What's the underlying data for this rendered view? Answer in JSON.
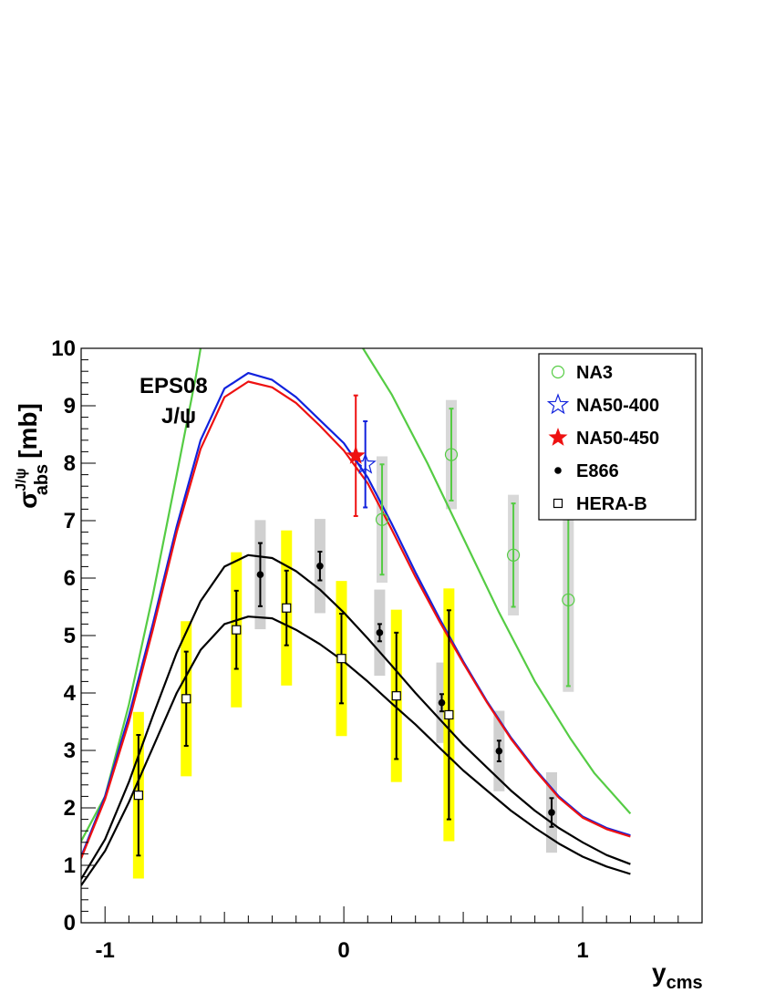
{
  "chart_data": {
    "type": "scatter",
    "title": "",
    "xlabel": "y",
    "xlabel_sub": "cms",
    "ylabel": "σ",
    "ylabel_sup": "J/ψ",
    "ylabel_sub": "abs",
    "ylabel_unit": "[mb]",
    "xlim": [
      -1.1,
      1.5
    ],
    "ylim": [
      0,
      10
    ],
    "x_ticks": [
      -1,
      0,
      1
    ],
    "x_tick_labels": [
      "-1",
      "0",
      "1"
    ],
    "y_ticks": [
      0,
      1,
      2,
      3,
      4,
      5,
      6,
      7,
      8,
      9,
      10
    ],
    "y_tick_labels": [
      "0",
      "1",
      "2",
      "3",
      "4",
      "5",
      "6",
      "7",
      "8",
      "9",
      "10"
    ],
    "annotation": [
      "EPS08",
      "J/ψ"
    ],
    "legend": [
      {
        "label": "NA3",
        "marker": "open-circle",
        "color": "#55cc44"
      },
      {
        "label": "NA50-400",
        "marker": "open-star",
        "color": "#1122dd"
      },
      {
        "label": "NA50-450",
        "marker": "filled-star",
        "color": "#ee1111"
      },
      {
        "label": "E866",
        "marker": "filled-circle",
        "color": "#000000"
      },
      {
        "label": "HERA-B",
        "marker": "open-square",
        "color": "#000000"
      }
    ],
    "series": [
      {
        "name": "NA3",
        "marker": "open-circle",
        "color": "#55cc44",
        "syst_color": "#d8d8d8",
        "points": [
          {
            "x": 0.16,
            "y": 7.02,
            "err": 0.96,
            "syst": 1.1
          },
          {
            "x": 0.45,
            "y": 8.15,
            "err": 0.8,
            "syst": 0.95
          },
          {
            "x": 0.71,
            "y": 6.4,
            "err": 0.9,
            "syst": 1.05
          },
          {
            "x": 0.94,
            "y": 5.62,
            "err": 1.5,
            "syst": 1.6
          }
        ]
      },
      {
        "name": "NA50-400",
        "marker": "open-star",
        "color": "#1122dd",
        "points": [
          {
            "x": 0.09,
            "y": 7.98,
            "err": 0.75
          }
        ]
      },
      {
        "name": "NA50-450",
        "marker": "filled-star",
        "color": "#ee1111",
        "points": [
          {
            "x": 0.05,
            "y": 8.13,
            "err": 1.05
          }
        ]
      },
      {
        "name": "E866",
        "marker": "filled-circle",
        "color": "#000000",
        "syst_color": "#d0d0d0",
        "points": [
          {
            "x": -0.35,
            "y": 6.06,
            "err": 0.55,
            "syst": 0.95
          },
          {
            "x": -0.1,
            "y": 6.21,
            "err": 0.25,
            "syst": 0.82
          },
          {
            "x": 0.15,
            "y": 5.05,
            "err": 0.15,
            "syst": 0.75
          },
          {
            "x": 0.41,
            "y": 3.83,
            "err": 0.15,
            "syst": 0.7
          },
          {
            "x": 0.65,
            "y": 2.99,
            "err": 0.18,
            "syst": 0.7
          },
          {
            "x": 0.87,
            "y": 1.92,
            "err": 0.25,
            "syst": 0.7
          }
        ]
      },
      {
        "name": "HERA-B",
        "marker": "open-square",
        "color": "#000000",
        "syst_color": "#ffff00",
        "points": [
          {
            "x": -0.86,
            "y": 2.22,
            "err": 1.05,
            "syst": 1.45
          },
          {
            "x": -0.66,
            "y": 3.9,
            "err": 0.82,
            "syst": 1.35
          },
          {
            "x": -0.45,
            "y": 5.1,
            "err": 0.68,
            "syst": 1.35
          },
          {
            "x": -0.24,
            "y": 5.48,
            "err": 0.65,
            "syst": 1.35
          },
          {
            "x": -0.01,
            "y": 4.6,
            "err": 0.78,
            "syst": 1.35
          },
          {
            "x": 0.22,
            "y": 3.95,
            "err": 1.1,
            "syst": 1.5
          },
          {
            "x": 0.44,
            "y": 3.62,
            "err": 1.82,
            "syst": 2.2
          }
        ]
      }
    ],
    "curves": [
      {
        "name": "green",
        "color": "#55cc44",
        "points": [
          [
            -1.1,
            1.42
          ],
          [
            -1.0,
            2.2
          ],
          [
            -0.9,
            3.8
          ],
          [
            -0.8,
            5.7
          ],
          [
            -0.7,
            7.8
          ],
          [
            -0.62,
            9.5
          ],
          [
            -0.6,
            10.0
          ]
        ]
      },
      {
        "name": "green-right",
        "color": "#55cc44",
        "points": [
          [
            0.08,
            10.0
          ],
          [
            0.2,
            9.2
          ],
          [
            0.35,
            8.0
          ],
          [
            0.5,
            6.7
          ],
          [
            0.65,
            5.4
          ],
          [
            0.8,
            4.2
          ],
          [
            0.95,
            3.2
          ],
          [
            1.05,
            2.6
          ],
          [
            1.2,
            1.9
          ]
        ]
      },
      {
        "name": "blue",
        "color": "#1122dd",
        "points": [
          [
            -1.1,
            1.15
          ],
          [
            -1.0,
            2.2
          ],
          [
            -0.9,
            3.6
          ],
          [
            -0.8,
            5.2
          ],
          [
            -0.7,
            6.9
          ],
          [
            -0.6,
            8.4
          ],
          [
            -0.5,
            9.3
          ],
          [
            -0.4,
            9.57
          ],
          [
            -0.3,
            9.45
          ],
          [
            -0.2,
            9.15
          ],
          [
            -0.1,
            8.75
          ],
          [
            0.0,
            8.35
          ],
          [
            0.1,
            7.75
          ],
          [
            0.2,
            6.95
          ],
          [
            0.3,
            6.1
          ],
          [
            0.4,
            5.3
          ],
          [
            0.5,
            4.55
          ],
          [
            0.6,
            3.85
          ],
          [
            0.7,
            3.22
          ],
          [
            0.8,
            2.68
          ],
          [
            0.9,
            2.2
          ],
          [
            1.0,
            1.85
          ],
          [
            1.1,
            1.65
          ],
          [
            1.2,
            1.52
          ]
        ]
      },
      {
        "name": "red",
        "color": "#ee1111",
        "points": [
          [
            -1.1,
            1.12
          ],
          [
            -1.0,
            2.15
          ],
          [
            -0.9,
            3.5
          ],
          [
            -0.8,
            5.1
          ],
          [
            -0.7,
            6.8
          ],
          [
            -0.6,
            8.25
          ],
          [
            -0.5,
            9.15
          ],
          [
            -0.4,
            9.42
          ],
          [
            -0.3,
            9.32
          ],
          [
            -0.2,
            9.05
          ],
          [
            -0.1,
            8.65
          ],
          [
            0.0,
            8.22
          ],
          [
            0.1,
            7.65
          ],
          [
            0.2,
            6.85
          ],
          [
            0.3,
            6.02
          ],
          [
            0.4,
            5.25
          ],
          [
            0.5,
            4.52
          ],
          [
            0.6,
            3.83
          ],
          [
            0.7,
            3.2
          ],
          [
            0.8,
            2.66
          ],
          [
            0.9,
            2.18
          ],
          [
            1.0,
            1.83
          ],
          [
            1.1,
            1.63
          ],
          [
            1.2,
            1.5
          ]
        ]
      },
      {
        "name": "black-upper",
        "color": "#000000",
        "points": [
          [
            -1.1,
            0.76
          ],
          [
            -1.0,
            1.45
          ],
          [
            -0.9,
            2.45
          ],
          [
            -0.8,
            3.6
          ],
          [
            -0.7,
            4.7
          ],
          [
            -0.6,
            5.6
          ],
          [
            -0.5,
            6.2
          ],
          [
            -0.4,
            6.4
          ],
          [
            -0.3,
            6.35
          ],
          [
            -0.2,
            6.12
          ],
          [
            -0.1,
            5.8
          ],
          [
            0.0,
            5.4
          ],
          [
            0.1,
            4.95
          ],
          [
            0.2,
            4.48
          ],
          [
            0.3,
            4.0
          ],
          [
            0.4,
            3.55
          ],
          [
            0.5,
            3.1
          ],
          [
            0.6,
            2.7
          ],
          [
            0.7,
            2.3
          ],
          [
            0.8,
            1.95
          ],
          [
            0.9,
            1.65
          ],
          [
            1.0,
            1.4
          ],
          [
            1.1,
            1.18
          ],
          [
            1.2,
            1.02
          ]
        ]
      },
      {
        "name": "black-lower",
        "color": "#000000",
        "points": [
          [
            -1.1,
            0.65
          ],
          [
            -1.0,
            1.25
          ],
          [
            -0.9,
            2.1
          ],
          [
            -0.8,
            3.05
          ],
          [
            -0.7,
            4.0
          ],
          [
            -0.6,
            4.75
          ],
          [
            -0.5,
            5.2
          ],
          [
            -0.4,
            5.33
          ],
          [
            -0.3,
            5.3
          ],
          [
            -0.2,
            5.1
          ],
          [
            -0.1,
            4.85
          ],
          [
            0.0,
            4.55
          ],
          [
            0.1,
            4.2
          ],
          [
            0.2,
            3.82
          ],
          [
            0.3,
            3.45
          ],
          [
            0.4,
            3.05
          ],
          [
            0.5,
            2.65
          ],
          [
            0.6,
            2.3
          ],
          [
            0.7,
            1.95
          ],
          [
            0.8,
            1.65
          ],
          [
            0.9,
            1.38
          ],
          [
            1.0,
            1.15
          ],
          [
            1.1,
            0.98
          ],
          [
            1.2,
            0.85
          ]
        ]
      }
    ]
  }
}
